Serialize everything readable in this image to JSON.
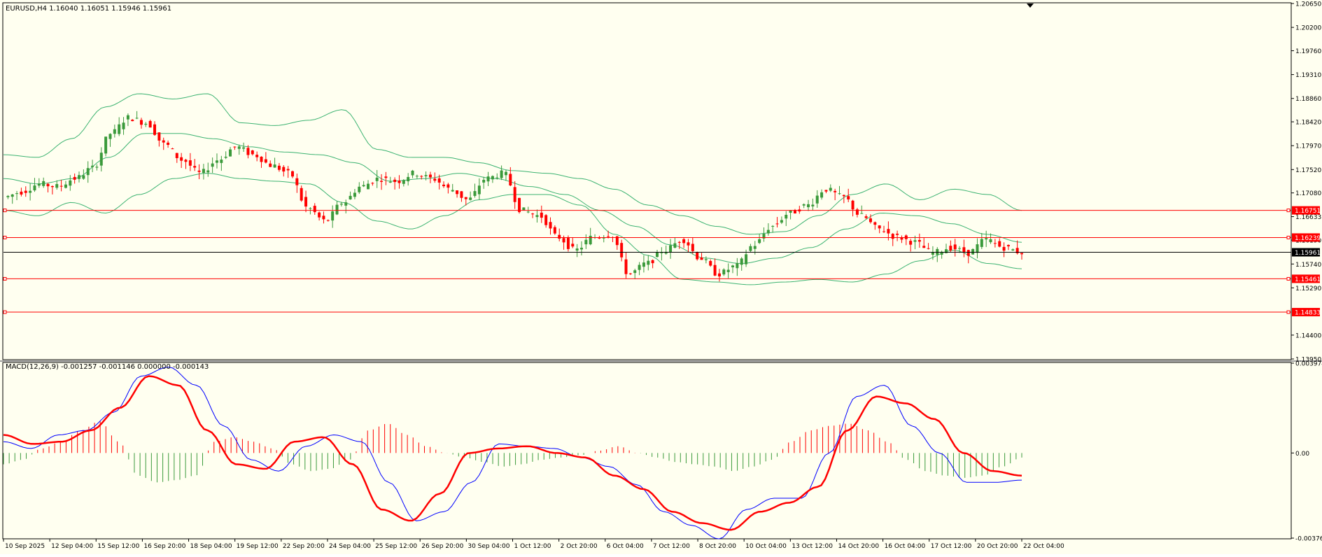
{
  "colors": {
    "background": "#fffff0",
    "frame": "#000000",
    "bull": "#3b9a3b",
    "bear": "#ff0000",
    "band": "#3cb371",
    "hline": "#ff0000",
    "price_line": "#000000",
    "macd_line": "#0000ff",
    "signal_line": "#ff0000"
  },
  "header": {
    "symbol_info": "EURUSD,H4  1.16040 1.16051 1.15946 1.15961"
  },
  "macd_header": {
    "label": "MACD(12,26,9) -0.001257 -0.001146 0.000000 -0.000143"
  },
  "chart_data": [
    {
      "type": "candlestick",
      "symbol": "EURUSD",
      "timeframe": "H4",
      "ohlc_last": {
        "open": 1.1604,
        "high": 1.16051,
        "low": 1.15946,
        "close": 1.15961
      },
      "ylim": [
        1.1395,
        1.2065
      ],
      "y_tick_labels": [
        "1.20650",
        "1.20200",
        "1.19760",
        "1.19310",
        "1.18860",
        "1.18420",
        "1.17970",
        "1.17520",
        "1.17080",
        "1.16633",
        "1.16190",
        "1.15740",
        "1.15290",
        "1.14400",
        "1.13950"
      ],
      "x_tick_labels": [
        "10 Sep 2025",
        "12 Sep 04:00",
        "15 Sep 12:00",
        "16 Sep 20:00",
        "18 Sep 04:00",
        "19 Sep 12:00",
        "22 Sep 20:00",
        "24 Sep 04:00",
        "25 Sep 12:00",
        "26 Sep 20:00",
        "30 Sep 04:00",
        "1 Oct 12:00",
        "2 Oct 20:00",
        "6 Oct 04:00",
        "7 Oct 12:00",
        "8 Oct 20:00",
        "10 Oct 04:00",
        "13 Oct 12:00",
        "14 Oct 20:00",
        "16 Oct 04:00",
        "17 Oct 12:00",
        "20 Oct 20:00",
        "22 Oct 04:00"
      ],
      "horizontal_levels": [
        {
          "value": 1.16751,
          "label": "1.16751"
        },
        {
          "value": 1.16239,
          "label": "1.16239"
        },
        {
          "value": 1.15461,
          "label": "1.15461"
        },
        {
          "value": 1.14833,
          "label": "1.14833"
        }
      ],
      "current_price": {
        "value": 1.15961,
        "label": "1.15961"
      },
      "close_path": [
        1.17,
        1.171,
        1.1725,
        1.172,
        1.1735,
        1.1755,
        1.182,
        1.185,
        1.184,
        1.18,
        1.177,
        1.1745,
        1.177,
        1.1795,
        1.178,
        1.176,
        1.1745,
        1.168,
        1.1655,
        1.169,
        1.172,
        1.1735,
        1.173,
        1.1745,
        1.1735,
        1.1715,
        1.1695,
        1.1735,
        1.1745,
        1.1675,
        1.1665,
        1.1625,
        1.16,
        1.1625,
        1.163,
        1.1555,
        1.1575,
        1.16,
        1.162,
        1.1585,
        1.1555,
        1.157,
        1.161,
        1.1645,
        1.167,
        1.1685,
        1.1715,
        1.17,
        1.1665,
        1.164,
        1.1625,
        1.1615,
        1.1595,
        1.1605,
        1.1595,
        1.162,
        1.1605,
        1.1596
      ],
      "bollinger_upper_path": [
        1.178,
        1.1775,
        1.181,
        1.187,
        1.1895,
        1.1885,
        1.1895,
        1.184,
        1.1835,
        1.1845,
        1.1865,
        1.179,
        1.1775,
        1.1775,
        1.1765,
        1.175,
        1.1745,
        1.1735,
        1.1715,
        1.1685,
        1.1665,
        1.1645,
        1.163,
        1.1635,
        1.1665,
        1.1705,
        1.1725,
        1.1695,
        1.1715,
        1.1705,
        1.1675
      ],
      "bollinger_middle_path": [
        1.1735,
        1.1725,
        1.1735,
        1.1775,
        1.182,
        1.182,
        1.181,
        1.1795,
        1.1785,
        1.178,
        1.1765,
        1.173,
        1.1735,
        1.1745,
        1.1735,
        1.172,
        1.1705,
        1.1675,
        1.1645,
        1.161,
        1.1585,
        1.1575,
        1.1585,
        1.1605,
        1.164,
        1.167,
        1.1665,
        1.165,
        1.163,
        1.1615
      ],
      "bollinger_lower_path": [
        1.1675,
        1.1665,
        1.169,
        1.167,
        1.1705,
        1.1735,
        1.1745,
        1.1735,
        1.173,
        1.1725,
        1.169,
        1.1655,
        1.164,
        1.1665,
        1.1695,
        1.1705,
        1.1705,
        1.1685,
        1.163,
        1.159,
        1.1545,
        1.154,
        1.1535,
        1.154,
        1.1545,
        1.154,
        1.1555,
        1.158,
        1.16,
        1.1575,
        1.1565
      ]
    },
    {
      "type": "macd",
      "params": "12,26,9",
      "values": {
        "main": -0.001257,
        "signal": -0.001146,
        "histogram_level": 0.0,
        "diff": -0.000143
      },
      "ylim": [
        -0.003766,
        0.003974
      ],
      "y_tick_labels": [
        "0.003974",
        "0.00",
        "-0.003766"
      ],
      "macd_path": [
        0.0005,
        0.0002,
        0.0008,
        0.001,
        0.0018,
        0.0034,
        0.0038,
        0.003,
        0.0012,
        -0.0003,
        -0.0008,
        0.0003,
        0.0008,
        0.0005,
        -0.0013,
        -0.003,
        -0.0026,
        -0.0013,
        0.0004,
        0.0003,
        0.0002,
        -0.0002,
        -0.0006,
        -0.0014,
        -0.0026,
        -0.0032,
        -0.0038,
        -0.0025,
        -0.002,
        -0.002,
        0.0,
        0.0025,
        0.003,
        0.0012,
        0.0,
        -0.0013,
        -0.0013,
        -0.0012
      ],
      "signal_path": [
        0.0008,
        0.0004,
        0.0005,
        0.001,
        0.002,
        0.0034,
        0.003,
        0.001,
        -0.0005,
        -0.0007,
        0.0005,
        0.0007,
        -0.0005,
        -0.0025,
        -0.003,
        -0.0018,
        0.0,
        0.0002,
        0.0003,
        0.0,
        -0.0002,
        -0.001,
        -0.0016,
        -0.0026,
        -0.0031,
        -0.0034,
        -0.0026,
        -0.0022,
        -0.0015,
        0.001,
        0.0025,
        0.0022,
        0.0015,
        0.0,
        -0.0008,
        -0.001
      ],
      "histogram_path": [
        -0.0005,
        -0.0003,
        0.0002,
        0.0005,
        0.001,
        0.0014,
        0.0005,
        -0.001,
        -0.0013,
        -0.0012,
        -0.001,
        0.0005,
        0.0007,
        0.0005,
        0.0002,
        -0.0005,
        -0.0008,
        -0.0007,
        -0.0003,
        0.001,
        0.0013,
        0.0008,
        0.0003,
        0.0,
        -0.0002,
        -0.0004,
        -0.0006,
        -0.0005,
        -0.0003,
        -0.0002,
        -0.0001,
        0.0001,
        0.0003,
        0.0,
        -0.0002,
        -0.0004,
        -0.0005,
        -0.0006,
        -0.0008,
        -0.0006,
        -0.0003,
        0.0005,
        0.001,
        0.0012,
        0.0013,
        0.001,
        0.0005,
        -0.0003,
        -0.0008,
        -0.001,
        -0.0011,
        -0.001,
        -0.0006,
        -0.0002
      ]
    }
  ]
}
